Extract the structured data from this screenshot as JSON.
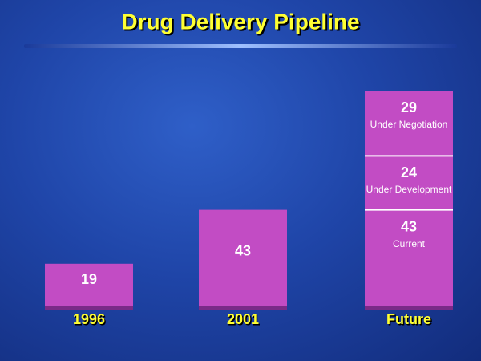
{
  "chart_data": {
    "type": "stacked-bar",
    "title": "Drug Delivery Pipeline",
    "categories": [
      "1996",
      "2001",
      "Future"
    ],
    "series": [
      {
        "name": "Current",
        "color": "#c24cc4",
        "values": [
          19,
          43,
          43
        ]
      },
      {
        "name": "Under Development",
        "color": "#c24cc4",
        "values": [
          null,
          null,
          24
        ]
      },
      {
        "name": "Under Negotiation",
        "color": "#c24cc4",
        "values": [
          null,
          null,
          29
        ]
      }
    ]
  }
}
